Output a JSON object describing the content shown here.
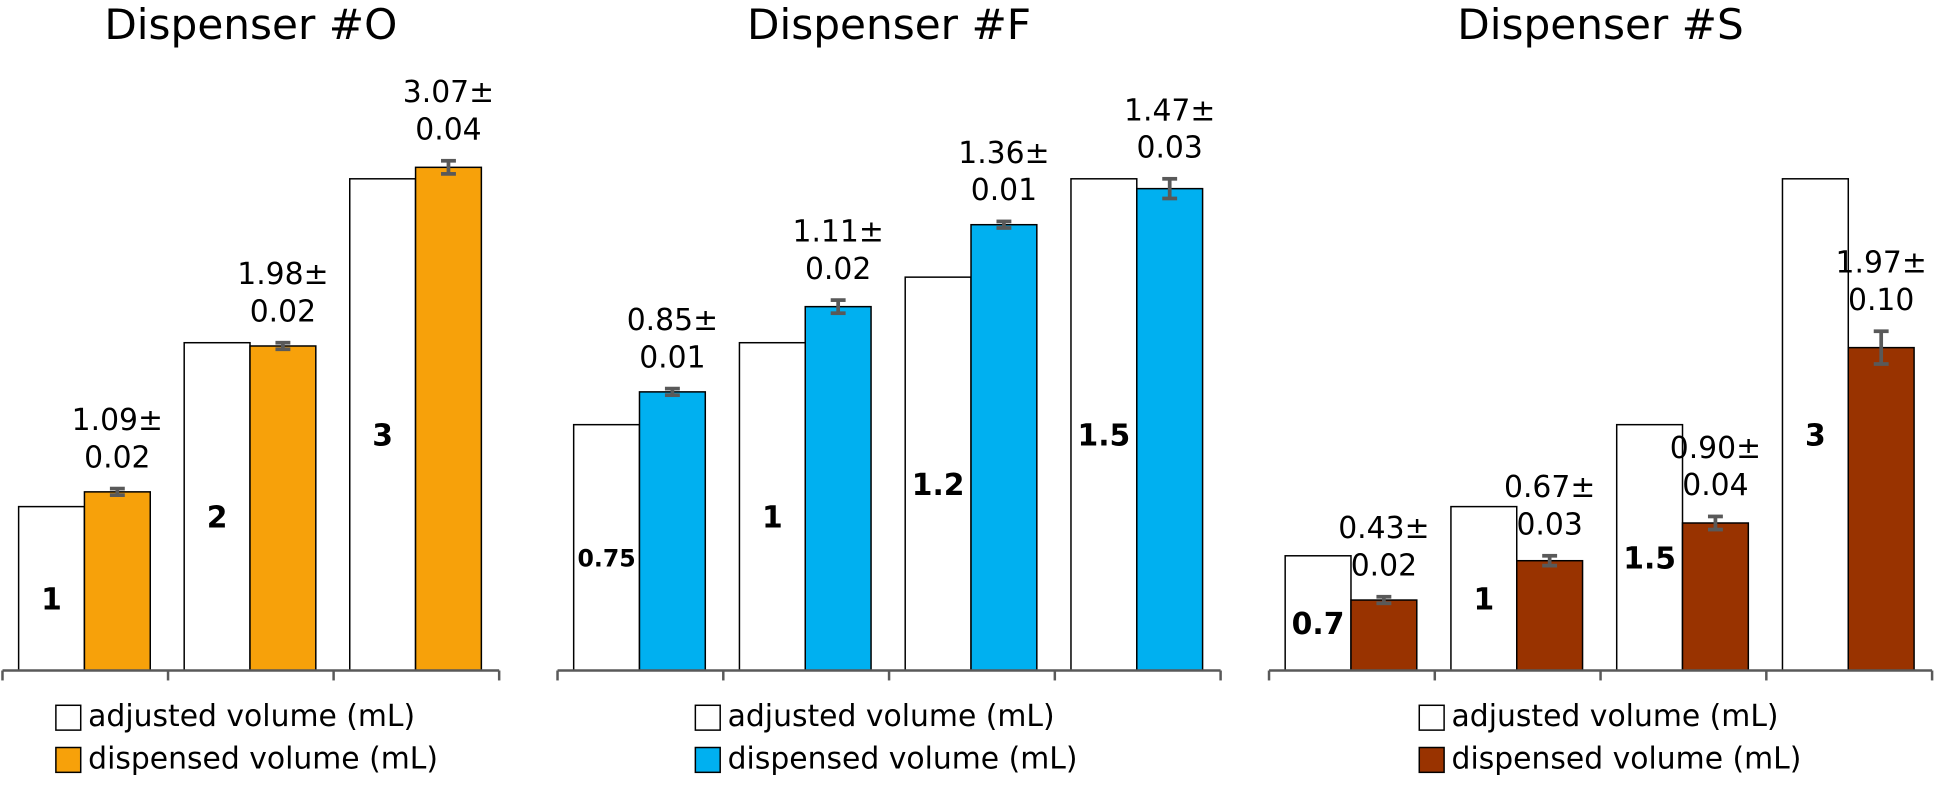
{
  "chart_data": [
    {
      "type": "bar",
      "title": "Dispenser #O",
      "categories": [
        null,
        null,
        null
      ],
      "ylim": [
        0,
        3.5
      ],
      "series": [
        {
          "name": "adjusted volume (mL)",
          "color": "#ffffff",
          "values": [
            1,
            2,
            3
          ]
        },
        {
          "name": "dispensed volume (mL)",
          "color": "#f7a10a",
          "values": [
            1.09,
            1.98,
            3.07
          ],
          "value_labels": [
            "1.09±",
            "1.98±",
            "3.07±"
          ],
          "errors": [
            0.02,
            0.02,
            0.04
          ],
          "error_labels": [
            "0.02",
            "0.02",
            "0.04"
          ]
        }
      ]
    },
    {
      "type": "bar",
      "title": "Dispenser #F",
      "categories": [
        null,
        null,
        null,
        null
      ],
      "ylim": [
        0,
        1.75
      ],
      "series": [
        {
          "name": "adjusted volume (mL)",
          "color": "#ffffff",
          "values": [
            0.75,
            1,
            1.2,
            1.5
          ]
        },
        {
          "name": "dispensed volume (mL)",
          "color": "#00b0f0",
          "values": [
            0.85,
            1.11,
            1.36,
            1.47
          ],
          "value_labels": [
            "0.85±",
            "1.11±",
            "1.36±",
            "1.47±"
          ],
          "errors": [
            0.01,
            0.02,
            0.01,
            0.03
          ],
          "error_labels": [
            "0.01",
            "0.02",
            "0.01",
            "0.03"
          ]
        }
      ]
    },
    {
      "type": "bar",
      "title": "Dispenser #S",
      "categories": [
        null,
        null,
        null,
        null
      ],
      "ylim": [
        0,
        3.5
      ],
      "series": [
        {
          "name": "adjusted volume (mL)",
          "color": "#ffffff",
          "values": [
            0.7,
            1,
            1.5,
            3
          ]
        },
        {
          "name": "dispensed volume (mL)",
          "color": "#993300",
          "values": [
            0.43,
            0.67,
            0.9,
            1.97
          ],
          "value_labels": [
            "0.43±",
            "0.67±",
            "0.90±",
            "1.97±"
          ],
          "errors": [
            0.02,
            0.03,
            0.04,
            0.1
          ],
          "error_labels": [
            "0.02",
            "0.03",
            "0.04",
            "0.10"
          ]
        }
      ]
    }
  ]
}
